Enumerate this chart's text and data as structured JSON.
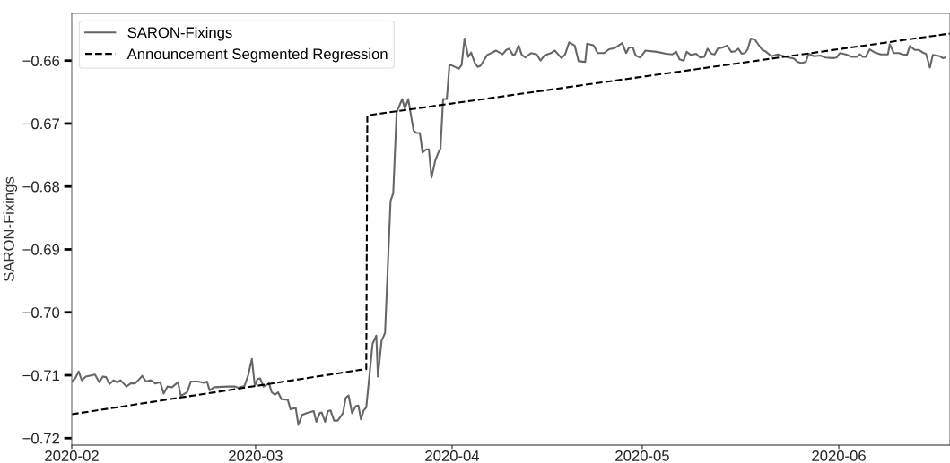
{
  "chart_data": {
    "type": "line",
    "ylabel": "SARON-Fixings",
    "xlim": [
      "2020-02-01",
      "2020-06-18T13:00"
    ],
    "ylim": [
      -0.7211,
      -0.6525
    ],
    "xticks": [
      "2020-02",
      "2020-03",
      "2020-04",
      "2020-05",
      "2020-06"
    ],
    "yticks": [
      {
        "value": -0.72,
        "label": "−0.72"
      },
      {
        "value": -0.71,
        "label": "−0.71"
      },
      {
        "value": -0.7,
        "label": "−0.70"
      },
      {
        "value": -0.69,
        "label": "−0.69"
      },
      {
        "value": -0.68,
        "label": "−0.68"
      },
      {
        "value": -0.67,
        "label": "−0.67"
      },
      {
        "value": -0.66,
        "label": "−0.66"
      }
    ],
    "grid": false,
    "legend": "top left",
    "series": [
      {
        "name": "SARON-Fixings",
        "color": "#666666",
        "line_style": "solid",
        "x": [
          "2020-02-01T00:00",
          "2020-02-01T13:00",
          "2020-02-02T02:00",
          "2020-02-02T14:00",
          "2020-02-03T05:00",
          "2020-02-04T16:00",
          "2020-02-05T08:00",
          "2020-02-05T22:00",
          "2020-02-06T10:00",
          "2020-02-06T23:00",
          "2020-02-07T14:00",
          "2020-02-08T04:00",
          "2020-02-08T17:00",
          "2020-02-09T15:00",
          "2020-02-10T07:00",
          "2020-02-11T00:00",
          "2020-02-12T03:00",
          "2020-02-12T17:00",
          "2020-02-13T11:00",
          "2020-02-14T04:00",
          "2020-02-14T23:00",
          "2020-02-15T12:00",
          "2020-02-16T02:00",
          "2020-02-16T20:00",
          "2020-02-17T18:00",
          "2020-02-18T05:00",
          "2020-02-19T05:00",
          "2020-02-19T19:00",
          "2020-02-20T22:00",
          "2020-02-21T21:00",
          "2020-02-22T08:00",
          "2020-02-22T18:00",
          "2020-02-23T11:00",
          "2020-02-25T12:00",
          "2020-02-26T19:00",
          "2020-02-27T06:00",
          "2020-02-28T06:00",
          "2020-02-28T20:00",
          "2020-02-29T10:00",
          "2020-02-29T21:00",
          "2020-03-01T07:00",
          "2020-03-01T17:00",
          "2020-03-02T06:00",
          "2020-03-03T03:00",
          "2020-03-03T13:00",
          "2020-03-04T02:00",
          "2020-03-04T13:00",
          "2020-03-05T02:00",
          "2020-03-06T02:00",
          "2020-03-06T12:00",
          "2020-03-07T08:00",
          "2020-03-07T18:00",
          "2020-03-08T08:00",
          "2020-03-09T01:00",
          "2020-03-10T04:00",
          "2020-03-10T14:00",
          "2020-03-11T03:00",
          "2020-03-11T10:00",
          "2020-03-11T23:00",
          "2020-03-12T10:00",
          "2020-03-12T20:00",
          "2020-03-13T09:00",
          "2020-03-13T23:00",
          "2020-03-14T19:00",
          "2020-03-15T05:00",
          "2020-03-15T16:00",
          "2020-03-16T05:00",
          "2020-03-16T19:00",
          "2020-03-17T05:00",
          "2020-03-17T15:00",
          "2020-03-18T01:00",
          "2020-03-18T11:00",
          "2020-03-19T11:00",
          "2020-03-20T01:00",
          "2020-03-20T07:00",
          "2020-03-20T21:00",
          "2020-03-21T10:00",
          "2020-03-22T07:00",
          "2020-03-22T17:00",
          "2020-03-23T06:00",
          "2020-03-24T03:00",
          "2020-03-24T13:00",
          "2020-03-25T02:00",
          "2020-03-25T22:00",
          "2020-03-26T09:00",
          "2020-03-26T22:00",
          "2020-03-27T08:00",
          "2020-03-27T22:00",
          "2020-03-28T08:00",
          "2020-03-28T18:00",
          "2020-03-29T08:00",
          "2020-03-29T21:00",
          "2020-03-30T04:00",
          "2020-03-30T14:00",
          "2020-03-31T04:00",
          "2020-03-31T14:00",
          "2020-04-02T01:00",
          "2020-04-02T12:00",
          "2020-04-02T23:00",
          "2020-04-03T13:00",
          "2020-04-04T00:00",
          "2020-04-04T14:00",
          "2020-04-05T01:00",
          "2020-04-05T12:00",
          "2020-04-06T13:00",
          "2020-04-07T04:00",
          "2020-04-07T22:00",
          "2020-04-08T23:00",
          "2020-04-09T13:00",
          "2020-04-10T00:00",
          "2020-04-10T14:00",
          "2020-04-10T22:00",
          "2020-04-11T12:00",
          "2020-04-11T23:00",
          "2020-04-12T13:00",
          "2020-04-13T11:00",
          "2020-04-14T08:00",
          "2020-04-14T23:00",
          "2020-04-15T13:00",
          "2020-04-16T14:00",
          "2020-04-17T05:00",
          "2020-04-18T06:00",
          "2020-04-18T20:00",
          "2020-04-19T11:00",
          "2020-04-20T08:00",
          "2020-04-20T23:00",
          "2020-04-22T00:00",
          "2020-04-22T07:00",
          "2020-04-23T08:00",
          "2020-04-23T23:00",
          "2020-04-25T00:00",
          "2020-04-25T18:00",
          "2020-04-26T16:00",
          "2020-04-27T20:00",
          "2020-04-28T11:00",
          "2020-04-28T22:00",
          "2020-04-29T12:00",
          "2020-04-29T23:00",
          "2020-04-30T17:00",
          "2020-05-01T12:00",
          "2020-05-03T07:00",
          "2020-05-04T18:00",
          "2020-05-05T18:00",
          "2020-05-06T09:00",
          "2020-05-06T21:00",
          "2020-05-07T13:00",
          "2020-05-08T00:00",
          "2020-05-08T16:00",
          "2020-05-09T12:00",
          "2020-05-10T03:00",
          "2020-05-10T19:00",
          "2020-05-11T07:00",
          "2020-05-11T22:00",
          "2020-05-12T10:00",
          "2020-05-12T22:00",
          "2020-05-13T17:00",
          "2020-05-14T09:00",
          "2020-05-15T01:00",
          "2020-05-15T16:00",
          "2020-05-16T04:00",
          "2020-05-16T16:00",
          "2020-05-17T04:00",
          "2020-05-17T15:00",
          "2020-05-18T03:00",
          "2020-05-18T19:00",
          "2020-05-19T22:00",
          "2020-05-20T10:00",
          "2020-05-21T09:00",
          "2020-05-22T09:00",
          "2020-05-23T16:00",
          "2020-05-24T23:00",
          "2020-05-25T11:00",
          "2020-05-26T03:00",
          "2020-05-26T19:00",
          "2020-05-27T06:00",
          "2020-05-28T02:00",
          "2020-05-29T02:00",
          "2020-05-29T21:00",
          "2020-05-31T01:00",
          "2020-05-31T16:00",
          "2020-06-01T04:00",
          "2020-06-02T03:00",
          "2020-06-03T01:00",
          "2020-06-03T20:00",
          "2020-06-04T08:00",
          "2020-06-04T19:00",
          "2020-06-05T06:00",
          "2020-06-05T21:00",
          "2020-06-06T16:00",
          "2020-06-07T15:00",
          "2020-06-08T18:00",
          "2020-06-09T01:00",
          "2020-06-09T16:00",
          "2020-06-10T11:00",
          "2020-06-11T03:00",
          "2020-06-11T18:00",
          "2020-06-12T05:00",
          "2020-06-13T00:00",
          "2020-06-13T15:00",
          "2020-06-14T10:00",
          "2020-06-14T18:00",
          "2020-06-15T09:00",
          "2020-06-15T20:00",
          "2020-06-16T23:00",
          "2020-06-17T10:00",
          "2020-06-17T18:00"
        ],
        "values": [
          -0.711,
          -0.7105,
          -0.7094,
          -0.7108,
          -0.7102,
          -0.7099,
          -0.7111,
          -0.7102,
          -0.7103,
          -0.7114,
          -0.7108,
          -0.7111,
          -0.7108,
          -0.7118,
          -0.7113,
          -0.7113,
          -0.7101,
          -0.711,
          -0.7108,
          -0.7113,
          -0.7111,
          -0.7129,
          -0.7118,
          -0.7119,
          -0.7111,
          -0.7133,
          -0.7127,
          -0.711,
          -0.711,
          -0.7112,
          -0.711,
          -0.7124,
          -0.7119,
          -0.7118,
          -0.7118,
          -0.712,
          -0.7117,
          -0.71,
          -0.7074,
          -0.7117,
          -0.7106,
          -0.7105,
          -0.7118,
          -0.7113,
          -0.7127,
          -0.7131,
          -0.7127,
          -0.7138,
          -0.7139,
          -0.7154,
          -0.7152,
          -0.7179,
          -0.7163,
          -0.716,
          -0.7157,
          -0.7174,
          -0.716,
          -0.7159,
          -0.7174,
          -0.7157,
          -0.7156,
          -0.7172,
          -0.7172,
          -0.716,
          -0.7136,
          -0.7132,
          -0.716,
          -0.7149,
          -0.7148,
          -0.717,
          -0.7156,
          -0.7151,
          -0.705,
          -0.7037,
          -0.7102,
          -0.7045,
          -0.7033,
          -0.6823,
          -0.6811,
          -0.6682,
          -0.6661,
          -0.6676,
          -0.6661,
          -0.6711,
          -0.6715,
          -0.6715,
          -0.6746,
          -0.6741,
          -0.6741,
          -0.6786,
          -0.6759,
          -0.6745,
          -0.674,
          -0.6661,
          -0.6661,
          -0.6606,
          -0.6613,
          -0.6607,
          -0.6565,
          -0.6594,
          -0.6587,
          -0.6604,
          -0.661,
          -0.6608,
          -0.6591,
          -0.6588,
          -0.6584,
          -0.659,
          -0.6583,
          -0.6581,
          -0.6591,
          -0.659,
          -0.6576,
          -0.659,
          -0.6595,
          -0.6588,
          -0.659,
          -0.66,
          -0.6592,
          -0.6588,
          -0.6584,
          -0.6596,
          -0.659,
          -0.6571,
          -0.6576,
          -0.6601,
          -0.6602,
          -0.6573,
          -0.6576,
          -0.6588,
          -0.6588,
          -0.6582,
          -0.658,
          -0.6572,
          -0.6588,
          -0.6579,
          -0.6579,
          -0.6592,
          -0.6595,
          -0.6584,
          -0.6586,
          -0.6589,
          -0.659,
          -0.6586,
          -0.6598,
          -0.66,
          -0.6586,
          -0.6591,
          -0.6589,
          -0.6595,
          -0.6594,
          -0.6581,
          -0.6589,
          -0.659,
          -0.6581,
          -0.6579,
          -0.6576,
          -0.6586,
          -0.6585,
          -0.6581,
          -0.6589,
          -0.6588,
          -0.6582,
          -0.6565,
          -0.6567,
          -0.6583,
          -0.6585,
          -0.6593,
          -0.659,
          -0.6594,
          -0.6597,
          -0.6602,
          -0.6604,
          -0.6602,
          -0.6589,
          -0.6593,
          -0.6592,
          -0.6595,
          -0.6596,
          -0.6595,
          -0.6588,
          -0.659,
          -0.6594,
          -0.6594,
          -0.659,
          -0.6594,
          -0.6594,
          -0.6582,
          -0.6587,
          -0.659,
          -0.659,
          -0.6574,
          -0.6588,
          -0.6588,
          -0.659,
          -0.6591,
          -0.6577,
          -0.6583,
          -0.6583,
          -0.6588,
          -0.6589,
          -0.6611,
          -0.6591,
          -0.6593,
          -0.6596,
          -0.6595
        ]
      },
      {
        "name": "Announcement Segmented Regression",
        "color": "#000000",
        "line_style": "dashed",
        "x": [
          "2020-02-01T00:00",
          "2020-03-18T11:00",
          "2020-03-18T15:00",
          "2020-06-18T13:00"
        ],
        "values": [
          -0.7162,
          -0.709,
          -0.6687,
          -0.6557
        ]
      }
    ]
  }
}
